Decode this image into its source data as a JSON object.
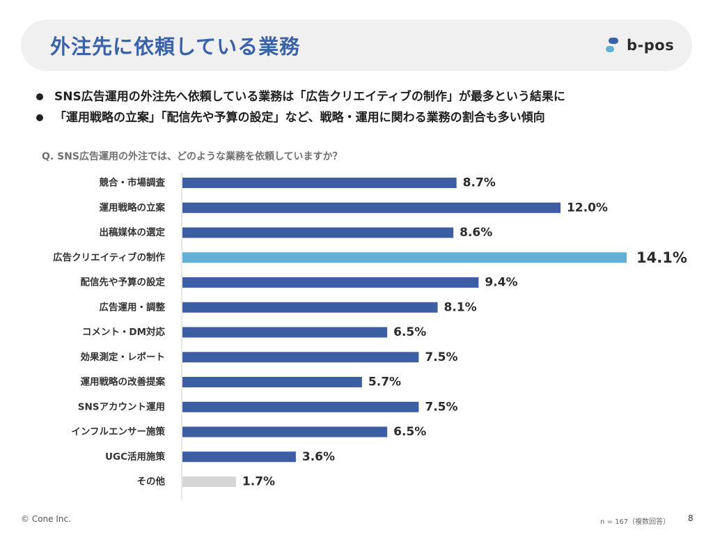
{
  "header": {
    "title": "外注先に依頼している業務",
    "logo_text": "b-pos",
    "logo_icon": "b-pos-logo-icon"
  },
  "bullets": [
    "SNS広告運用の外注先へ依頼している業務は「広告クリエイティブの制作」が最多という結果に",
    "「運用戦略の立案」「配信先や予算の設定」など、戦略・運用に関わる業務の割合も多い傾向"
  ],
  "question": "Q. SNS広告運用の外注では、どのような業務を依頼していますか？",
  "chart_data": {
    "type": "bar",
    "orientation": "horizontal",
    "categories": [
      "競合・市場調査",
      "運用戦略の立案",
      "出稿媒体の選定",
      "広告クリエイティブの制作",
      "配信先や予算の設定",
      "広告運用・調整",
      "コメント・DM対応",
      "効果測定・レポート",
      "運用戦略の改善提案",
      "SNSアカウント運用",
      "インフルエンサー施策",
      "UGC活用施策",
      "その他"
    ],
    "values": [
      8.7,
      12.0,
      8.6,
      14.1,
      9.4,
      8.1,
      6.5,
      7.5,
      5.7,
      7.5,
      6.5,
      3.6,
      1.7
    ],
    "value_labels": [
      "8.7%",
      "12.0%",
      "8.6%",
      "14.1%",
      "9.4%",
      "8.1%",
      "6.5%",
      "7.5%",
      "5.7%",
      "7.5%",
      "6.5%",
      "3.6%",
      "1.7%"
    ],
    "unit": "%",
    "xlim": [
      0,
      14.1
    ],
    "colors": {
      "default": "#3c5fa3",
      "highlight": "#63b0d6",
      "other": "#d6d6d6"
    },
    "highlight_index": 3,
    "other_index": 12,
    "grid": false,
    "legend": "none"
  },
  "footer": {
    "copyright": "© Cone Inc.",
    "note": "n = 167（複数回答）",
    "page": "8"
  }
}
